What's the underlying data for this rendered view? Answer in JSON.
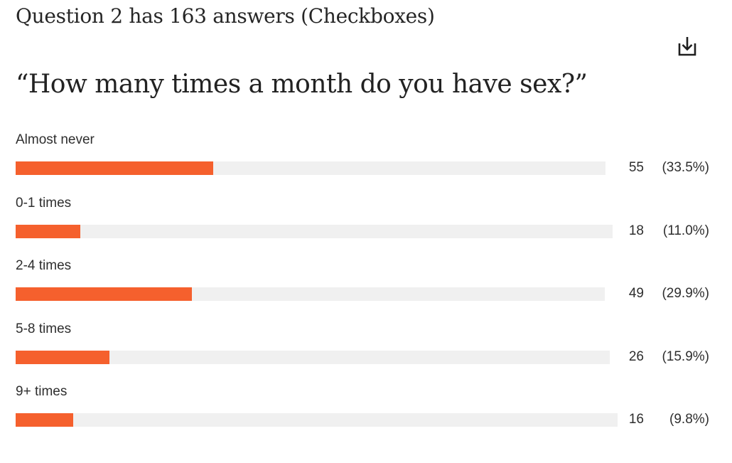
{
  "header": {
    "summary": "Question 2 has 163 answers (Checkboxes)",
    "download_icon": "download-icon"
  },
  "question": {
    "title": "“How many times a month do you have sex?”"
  },
  "colors": {
    "bar_fill": "#f5602d",
    "bar_track": "#f0f0f0"
  },
  "answers": [
    {
      "label": "Almost never",
      "count": "55",
      "percent": "(33.5%)",
      "value": 33.5
    },
    {
      "label": "0-1 times",
      "count": "18",
      "percent": "(11.0%)",
      "value": 11.0
    },
    {
      "label": "2-4 times",
      "count": "49",
      "percent": "(29.9%)",
      "value": 29.9
    },
    {
      "label": "5-8 times",
      "count": "26",
      "percent": "(15.9%)",
      "value": 15.9
    },
    {
      "label": "9+ times",
      "count": "16",
      "percent": "(9.8%)",
      "value": 9.8
    }
  ]
}
